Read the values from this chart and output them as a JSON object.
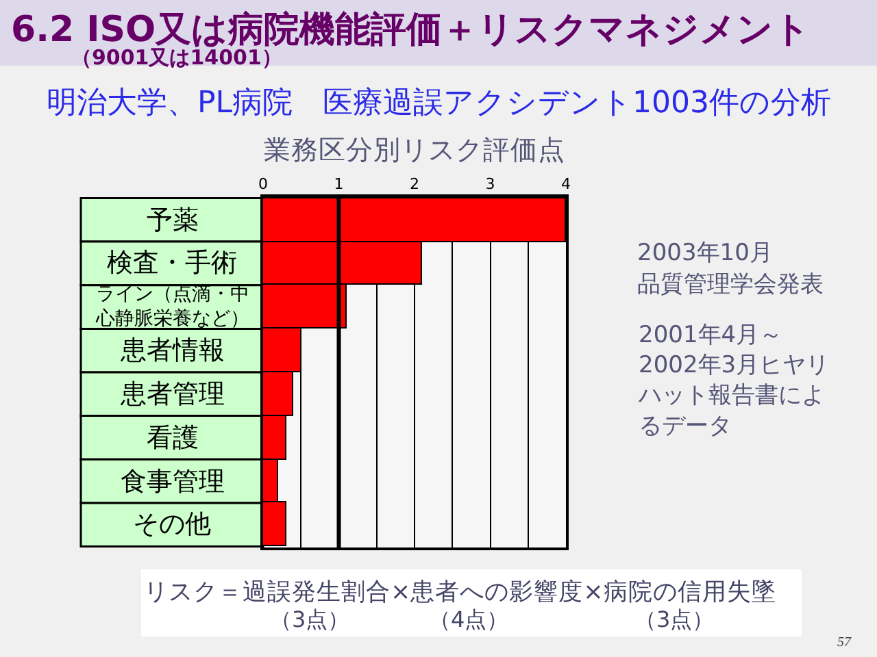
{
  "chart_data": {
    "type": "bar",
    "orientation": "horizontal",
    "title": "6.2 ISO又は病院機能評価＋リスクマネジメント",
    "subtitle": "（9001又は14001）",
    "xlabel": "業務区分別リスク評価点",
    "categories": [
      "予薬",
      "検査・手術",
      "ライン（点滴・中心静脈栄養など）",
      "患者情報",
      "患者管理",
      "看護",
      "食事管理",
      "その他"
    ],
    "values": [
      4.0,
      2.1,
      1.1,
      0.5,
      0.4,
      0.3,
      0.2,
      0.3
    ],
    "color": "#ff0000",
    "xlim": [
      0,
      4
    ],
    "xticks": [
      0,
      {
        "value": 0.5,
        "label": null
      },
      1,
      {
        "value": 1.5,
        "label": null
      },
      2,
      {
        "value": 2.5,
        "label": null
      },
      3,
      {
        "value": 3.5,
        "label": null
      },
      4
    ],
    "grid": "x",
    "ref_lines": [
      {
        "axis": "x",
        "value": 1,
        "color": "#000000"
      }
    ],
    "annotations": [
      "明治大学、PL病院　医療過誤アクシデント1003件の分析",
      "2003年10月",
      "品質管理学会発表",
      "2001年4月～2002年3月ヒヤリハット報告書によるデータ",
      "リスク＝過誤発生割合×患者への影響度×病院の信用失墜",
      "（3点）",
      "（4点）",
      "（3点）",
      "57"
    ]
  }
}
